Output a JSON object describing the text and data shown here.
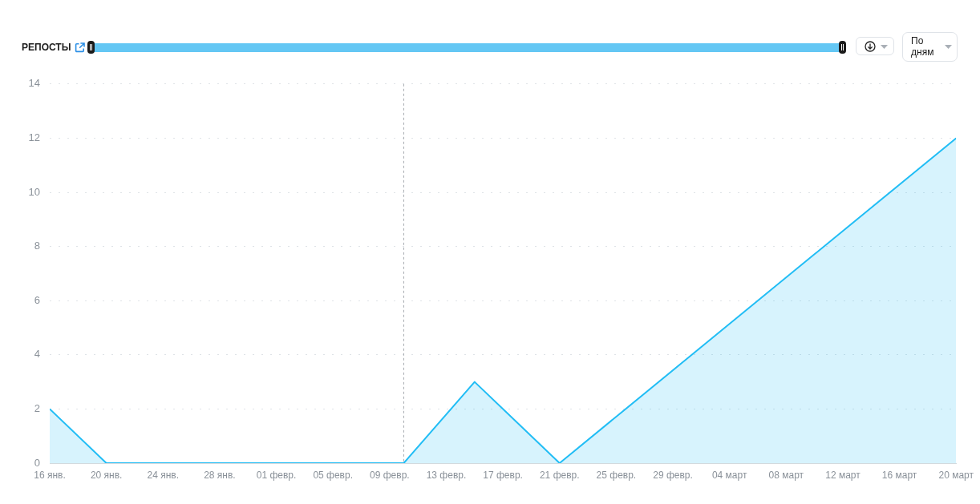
{
  "chart_data": {
    "type": "area",
    "title": "РЕПОСТЫ",
    "annotations": [
      "По дням"
    ],
    "x": [
      "--01-16",
      "--01-20",
      "--02-10",
      "--02-15",
      "--02-21",
      "--03-20"
    ],
    "values": [
      2,
      0,
      0,
      3,
      0,
      12
    ],
    "color": "#21bdf5",
    "xlim": [
      "--01-16",
      "--03-20"
    ],
    "xticks": [
      {
        "value": "--01-16",
        "label": "16 янв."
      },
      {
        "value": "--01-20",
        "label": "20 янв."
      },
      {
        "value": "--01-24",
        "label": "24 янв."
      },
      {
        "value": "--01-28",
        "label": "28 янв."
      },
      {
        "value": "--02-01",
        "label": "01 февр."
      },
      {
        "value": "--02-05",
        "label": "05 февр."
      },
      {
        "value": "--02-09",
        "label": "09 февр."
      },
      {
        "value": "--02-13",
        "label": "13 февр."
      },
      {
        "value": "--02-17",
        "label": "17 февр."
      },
      {
        "value": "--02-21",
        "label": "21 февр."
      },
      {
        "value": "--02-25",
        "label": "25 февр."
      },
      {
        "value": "--02-29",
        "label": "29 февр."
      },
      {
        "value": "--03-04",
        "label": "04 март"
      },
      {
        "value": "--03-08",
        "label": "08 март"
      },
      {
        "value": "--03-12",
        "label": "12 март"
      },
      {
        "value": "--03-16",
        "label": "16 март"
      },
      {
        "value": "--03-20",
        "label": "20 март"
      }
    ],
    "ylim": [
      0,
      14
    ],
    "yticks": [
      0,
      2,
      4,
      6,
      8,
      10,
      12,
      14
    ],
    "grid": "y",
    "ref_lines": [
      {
        "axis": "x",
        "value": "--02-10",
        "color": "#a9adb2",
        "line_style": "dashed"
      }
    ]
  }
}
